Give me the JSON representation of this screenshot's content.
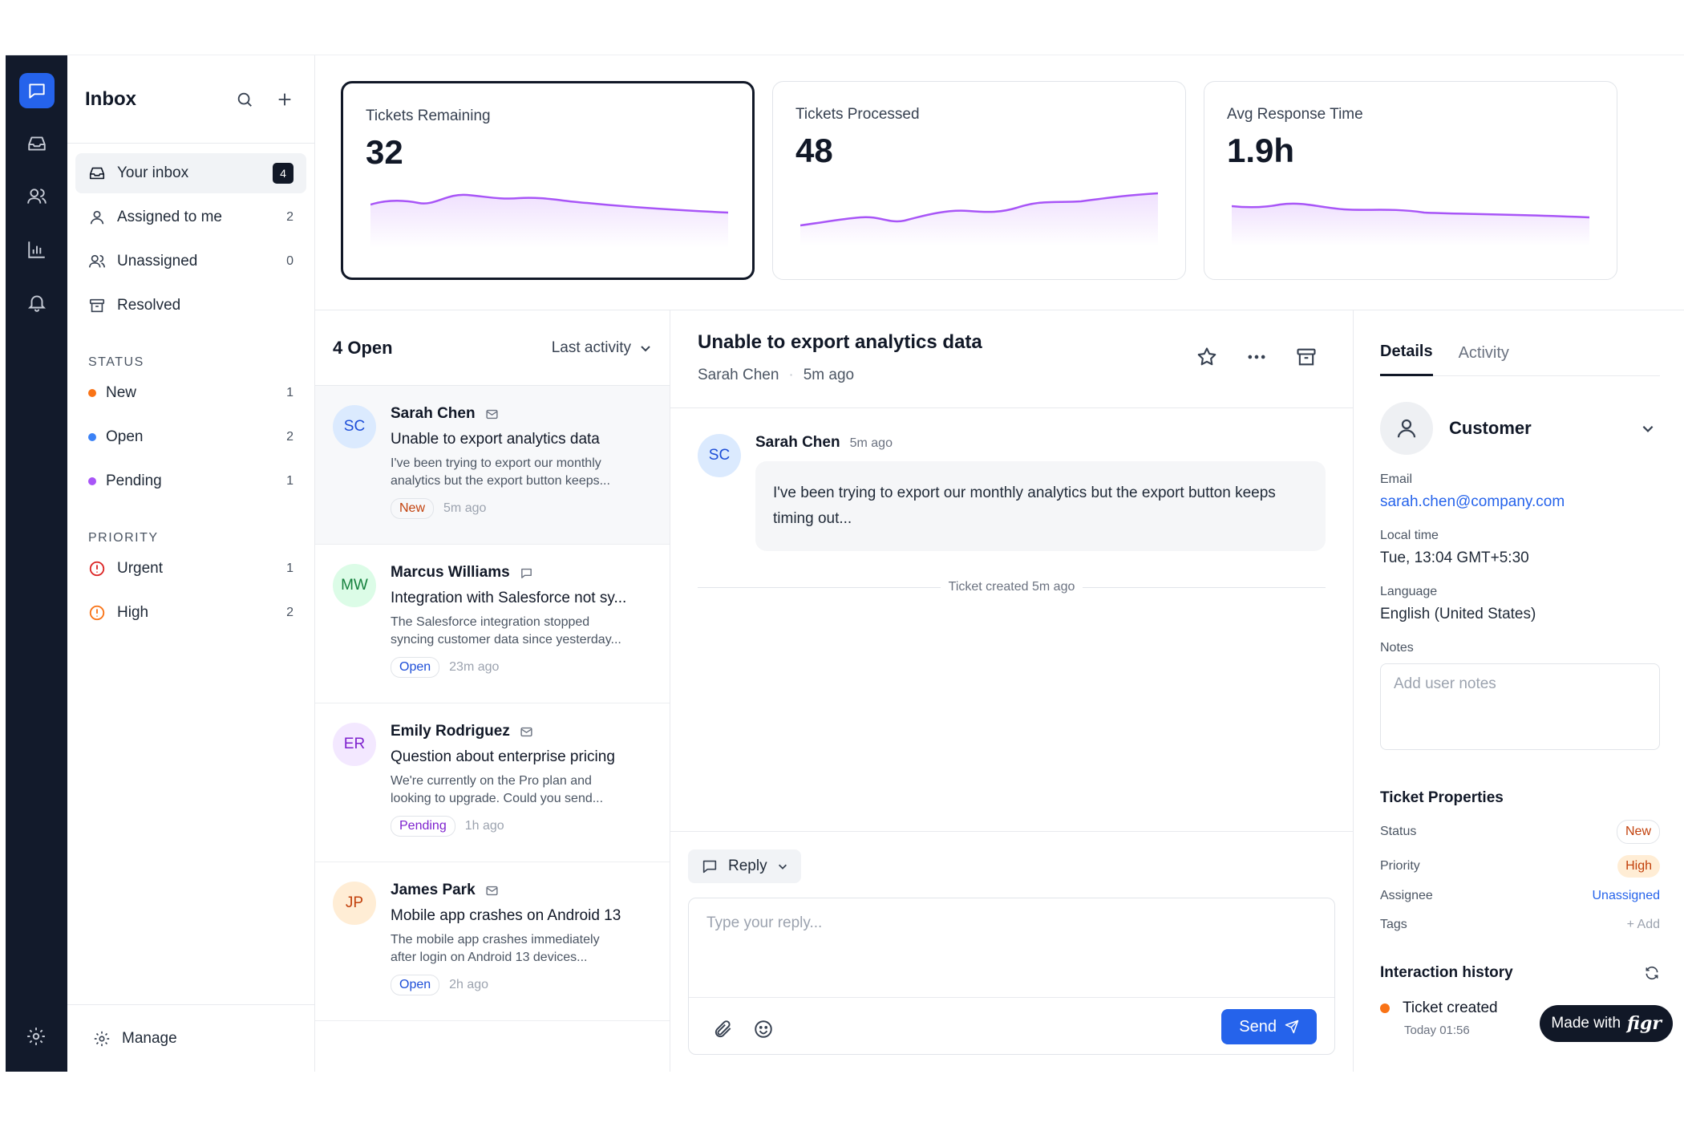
{
  "sidebar": {
    "title": "Inbox",
    "nav": [
      {
        "label": "Your inbox",
        "count": "4"
      },
      {
        "label": "Assigned to me",
        "count": "2"
      },
      {
        "label": "Unassigned",
        "count": "0"
      },
      {
        "label": "Resolved",
        "count": ""
      }
    ],
    "status_heading": "STATUS",
    "status": [
      {
        "label": "New",
        "count": "1",
        "color": "#f97316"
      },
      {
        "label": "Open",
        "count": "2",
        "color": "#3b82f6"
      },
      {
        "label": "Pending",
        "count": "1",
        "color": "#a855f7"
      }
    ],
    "priority_heading": "PRIORITY",
    "priority": [
      {
        "label": "Urgent",
        "count": "1",
        "color": "#dc2626"
      },
      {
        "label": "High",
        "count": "2",
        "color": "#f97316"
      }
    ],
    "footer": "Manage"
  },
  "stats": [
    {
      "label": "Tickets Remaining",
      "value": "32"
    },
    {
      "label": "Tickets Processed",
      "value": "48"
    },
    {
      "label": "Avg Response Time",
      "value": "1.9h"
    }
  ],
  "list": {
    "title": "4 Open",
    "sort": "Last activity",
    "tickets": [
      {
        "initials": "SC",
        "name": "Sarah Chen",
        "subject": "Unable to export analytics data",
        "preview1": "I've been trying to export our monthly",
        "preview2": "analytics but the export button keeps...",
        "status": "New",
        "time": "5m ago"
      },
      {
        "initials": "MW",
        "name": "Marcus Williams",
        "subject": "Integration with Salesforce not sy...",
        "preview1": "The Salesforce integration stopped",
        "preview2": "syncing customer data since yesterday...",
        "status": "Open",
        "time": "23m ago"
      },
      {
        "initials": "ER",
        "name": "Emily Rodriguez",
        "subject": "Question about enterprise pricing",
        "preview1": "We're currently on the Pro plan and",
        "preview2": "looking to upgrade. Could you send...",
        "status": "Pending",
        "time": "1h ago"
      },
      {
        "initials": "JP",
        "name": "James Park",
        "subject": "Mobile app crashes on Android 13",
        "preview1": "The mobile app crashes immediately",
        "preview2": "after login on Android 13 devices...",
        "status": "Open",
        "time": "2h ago"
      }
    ]
  },
  "conversation": {
    "title": "Unable to export analytics data",
    "author": "Sarah Chen",
    "sep": "·",
    "time": "5m ago",
    "message": {
      "initials": "SC",
      "name": "Sarah Chen",
      "time": "5m ago",
      "text": "I've been trying to export our monthly analytics but the export button keeps timing out..."
    },
    "event": "Ticket created 5m ago",
    "reply_mode": "Reply",
    "reply_placeholder": "Type your reply...",
    "send": "Send"
  },
  "details": {
    "tabs": [
      "Details",
      "Activity"
    ],
    "customer": "Customer",
    "email_label": "Email",
    "email": "sarah.chen@company.com",
    "local_time_label": "Local time",
    "local_time": "Tue, 13:04 GMT+5:30",
    "language_label": "Language",
    "language": "English (United States)",
    "notes_label": "Notes",
    "notes_placeholder": "Add user notes",
    "props_title": "Ticket Properties",
    "status_label": "Status",
    "status": "New",
    "priority_label": "Priority",
    "priority": "High",
    "assignee_label": "Assignee",
    "assignee": "Unassigned",
    "tags_label": "Tags",
    "tags_action": "+ Add",
    "history_title": "Interaction history",
    "history_item": "Ticket created",
    "history_time": "Today 01:56"
  },
  "badge": {
    "prefix": "Made with",
    "brand": "figr"
  },
  "colors": {
    "accent": "#2563eb",
    "rail": "#121a2b",
    "spark": "#a855f7"
  },
  "icons": {
    "rail": [
      "chat-icon",
      "inbox-icon",
      "users-icon",
      "chart-icon",
      "bell-icon",
      "gear-icon"
    ]
  }
}
